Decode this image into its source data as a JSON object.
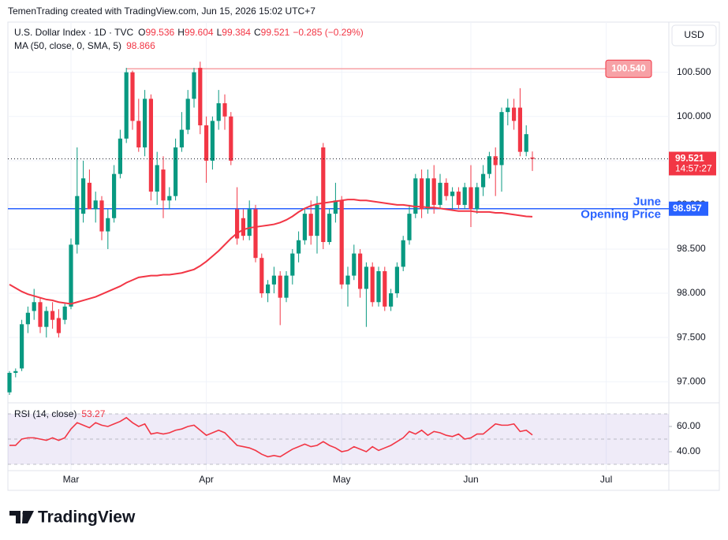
{
  "header": "TemenTrading created with TradingView.com, Jun 15, 2026 15:02 UTC+7",
  "logo": "TradingView",
  "chart_data": [
    {
      "type": "candlestick",
      "title": "U.S. Dollar Index · 1D · TVC",
      "ohlc_labels": [
        "O",
        "H",
        "L",
        "C"
      ],
      "change": "−0.285 (−0.29%)",
      "currency": "USD",
      "countdown": "14:57:27",
      "up_color": "#089981",
      "down_color": "#f23645",
      "categories": [
        null,
        null,
        null,
        null,
        null,
        null,
        null,
        null,
        null,
        null,
        "Mar",
        null,
        null,
        null,
        null,
        null,
        null,
        null,
        null,
        null,
        null,
        null,
        null,
        null,
        null,
        null,
        null,
        null,
        null,
        null,
        null,
        null,
        "Apr",
        null,
        null,
        null,
        null,
        null,
        null,
        null,
        null,
        null,
        null,
        null,
        null,
        null,
        null,
        null,
        null,
        null,
        null,
        null,
        null,
        null,
        "May",
        null,
        null,
        null,
        null,
        null,
        null,
        null,
        null,
        null,
        null,
        null,
        null,
        null,
        null,
        null,
        null,
        null,
        null,
        null,
        null,
        "Jun",
        null,
        null,
        null,
        null,
        null,
        null,
        null,
        null,
        null,
        null,
        null,
        null,
        null,
        null,
        null,
        null,
        null,
        null,
        null,
        null,
        null,
        "Jul"
      ],
      "open": [
        96.88,
        97.1,
        97.15,
        97.65,
        97.8,
        97.9,
        97.62,
        97.8,
        97.72,
        97.7,
        97.85,
        98.55,
        98.9,
        99.25,
        98.95,
        99.05,
        98.7,
        98.85,
        99.35,
        99.75,
        100.5,
        99.95,
        99.65,
        100.2,
        99.15,
        99.4,
        99.05,
        99.1,
        99.65,
        99.85,
        100.2,
        100.55,
        99.9,
        99.5,
        99.95,
        100.15,
        100.0,
        98.95,
        98.85,
        98.65,
        98.95,
        98.4,
        98.0,
        98.1,
        98.2,
        97.95,
        98.2,
        98.45,
        98.6,
        98.9,
        98.65,
        99.65,
        98.58,
        98.9,
        99.05,
        98.1,
        98.2,
        98.45,
        98.05,
        98.3,
        97.9,
        98.25,
        97.85,
        98.0,
        98.3,
        98.6,
        98.9,
        99.3,
        98.95,
        99.3,
        99.0,
        99.25,
        99.1,
        99.15,
        99.0,
        99.2,
        98.95,
        99.2,
        99.35,
        99.55,
        99.45,
        100.05,
        100.1,
        100.1,
        99.6,
        99.536,
        null,
        null,
        null,
        null,
        null,
        null,
        null,
        null,
        null,
        null,
        null,
        null
      ],
      "high": [
        97.12,
        97.15,
        97.7,
        97.85,
        98.05,
        97.95,
        97.85,
        97.9,
        97.82,
        97.88,
        98.62,
        99.65,
        99.5,
        99.4,
        99.15,
        99.1,
        98.95,
        99.45,
        99.85,
        100.55,
        100.52,
        100.2,
        100.3,
        100.25,
        99.6,
        99.55,
        99.2,
        99.75,
        100.05,
        100.3,
        100.55,
        100.62,
        100.0,
        100.0,
        100.3,
        100.25,
        100.05,
        99.2,
        98.95,
        99.05,
        99.0,
        98.45,
        98.15,
        98.3,
        98.25,
        98.25,
        98.5,
        98.7,
        98.95,
        99.05,
        99.1,
        99.7,
        98.95,
        99.25,
        99.1,
        98.3,
        98.55,
        98.5,
        98.35,
        98.35,
        98.3,
        98.3,
        98.05,
        98.35,
        98.65,
        99.0,
        99.35,
        99.4,
        99.4,
        99.45,
        99.35,
        99.3,
        99.2,
        99.2,
        99.25,
        99.45,
        99.25,
        99.45,
        99.6,
        99.65,
        100.1,
        100.2,
        100.2,
        100.32,
        99.9,
        99.604,
        null,
        null,
        null,
        null,
        null,
        null,
        null,
        null,
        null,
        null,
        null,
        null
      ],
      "low": [
        96.85,
        97.05,
        97.12,
        97.55,
        97.7,
        97.55,
        97.5,
        97.6,
        97.5,
        97.65,
        97.82,
        98.45,
        98.8,
        98.95,
        98.8,
        98.6,
        98.5,
        98.8,
        99.3,
        99.7,
        99.85,
        99.6,
        99.55,
        99.05,
        99.0,
        98.85,
        98.95,
        99.05,
        99.6,
        99.8,
        100.1,
        99.8,
        99.25,
        99.4,
        99.85,
        99.85,
        99.45,
        98.55,
        98.6,
        98.6,
        98.35,
        97.95,
        97.9,
        98.0,
        97.64,
        97.9,
        98.1,
        98.35,
        98.55,
        98.55,
        98.45,
        98.5,
        98.55,
        98.8,
        98.05,
        97.85,
        98.15,
        97.95,
        97.62,
        97.85,
        97.85,
        97.8,
        97.8,
        97.95,
        98.25,
        98.55,
        98.85,
        98.85,
        98.9,
        98.9,
        98.95,
        99.05,
        98.95,
        98.95,
        98.95,
        98.75,
        98.9,
        99.1,
        99.3,
        99.1,
        99.15,
        99.9,
        99.85,
        99.55,
        99.55,
        99.384,
        null,
        null,
        null,
        null,
        null,
        null,
        null,
        null,
        null,
        null,
        null,
        null
      ],
      "close": [
        97.1,
        97.12,
        97.65,
        97.78,
        97.9,
        97.62,
        97.8,
        97.7,
        97.55,
        97.85,
        98.55,
        99.1,
        99.3,
        98.95,
        99.05,
        98.7,
        98.85,
        99.35,
        99.75,
        100.5,
        99.95,
        99.65,
        100.2,
        99.15,
        99.45,
        99.05,
        99.1,
        99.65,
        99.85,
        100.2,
        100.5,
        99.9,
        99.5,
        99.95,
        100.15,
        100.0,
        99.5,
        98.62,
        98.65,
        98.95,
        98.4,
        98.0,
        98.1,
        98.2,
        97.95,
        98.2,
        98.45,
        98.6,
        98.9,
        98.65,
        99.0,
        98.58,
        98.9,
        99.05,
        98.1,
        98.2,
        98.45,
        98.05,
        98.3,
        97.9,
        98.25,
        97.85,
        98.0,
        98.3,
        98.6,
        98.9,
        99.3,
        98.95,
        99.3,
        99.0,
        99.25,
        99.1,
        99.15,
        99.0,
        99.2,
        98.95,
        99.2,
        99.35,
        99.55,
        99.45,
        100.05,
        100.1,
        99.95,
        99.6,
        99.8,
        99.521,
        null,
        null,
        null,
        null,
        null,
        null,
        null,
        null,
        null,
        null,
        null,
        null
      ],
      "series": [
        {
          "name": "MA (50, close, 0, SMA, 5)",
          "color": "#f23645",
          "values": [
            98.1,
            98.06,
            98.02,
            97.99,
            97.97,
            97.95,
            97.93,
            97.92,
            97.9,
            97.89,
            97.88,
            97.9,
            97.92,
            97.94,
            97.96,
            97.99,
            98.02,
            98.05,
            98.08,
            98.12,
            98.15,
            98.18,
            98.19,
            98.2,
            98.2,
            98.21,
            98.21,
            98.22,
            98.23,
            98.25,
            98.27,
            98.31,
            98.36,
            98.42,
            98.48,
            98.55,
            98.62,
            98.68,
            98.72,
            98.74,
            98.75,
            98.76,
            98.77,
            98.78,
            98.8,
            98.83,
            98.87,
            98.92,
            98.96,
            98.99,
            99.01,
            99.02,
            99.03,
            99.04,
            99.05,
            99.06,
            99.06,
            99.05,
            99.05,
            99.04,
            99.03,
            99.02,
            99.01,
            99.0,
            99.0,
            98.99,
            98.98,
            98.98,
            98.97,
            98.97,
            98.96,
            98.95,
            98.94,
            98.93,
            98.93,
            98.93,
            98.92,
            98.92,
            98.92,
            98.91,
            98.91,
            98.9,
            98.89,
            98.88,
            98.87,
            98.866,
            null,
            null,
            null,
            null,
            null,
            null,
            null,
            null,
            null,
            null,
            null,
            null
          ]
        }
      ],
      "levels": [
        {
          "price": {
            "value": 100.54,
            "label": "100.540"
          },
          "color": "#f7a1a6"
        },
        {
          "price": 98.957,
          "color": "#2962ff",
          "note": [
            "June",
            "Opening Price"
          ]
        }
      ],
      "ylim": [
        96.77,
        101.05
      ],
      "yticks": [
        {
          "value": 97,
          "label": "97.000"
        },
        {
          "value": 97.5,
          "label": "97.500"
        },
        {
          "value": 98,
          "label": "98.000"
        },
        {
          "value": 98.5,
          "label": "98.500"
        },
        {
          "value": 99,
          "label": "99.000"
        },
        {
          "value": 99.5,
          "label": "99.500"
        },
        {
          "value": 100,
          "label": "100.000"
        },
        {
          "value": 100.5,
          "label": "100.500"
        }
      ],
      "grid": true
    },
    {
      "type": "line",
      "series": [
        {
          "name": "RSI (14, close)",
          "color": "#f23645",
          "values": [
            45,
            45,
            50,
            51,
            51,
            50,
            49,
            51,
            49,
            51,
            58,
            63,
            61,
            59,
            63,
            61,
            60,
            62,
            64,
            67,
            63,
            60,
            62,
            54,
            55,
            54,
            55,
            57,
            58,
            60,
            61,
            57,
            53,
            55,
            57,
            55,
            50,
            45,
            44,
            43,
            41,
            38,
            36,
            37,
            36,
            39,
            42,
            44,
            46,
            44,
            45,
            48,
            45,
            43,
            40,
            41,
            44,
            42,
            40,
            44,
            41,
            43,
            45,
            48,
            51,
            56,
            54,
            57,
            53,
            56,
            55,
            53,
            52,
            54,
            50,
            51,
            54,
            54,
            58,
            62,
            61,
            61,
            62,
            56,
            57,
            53.27
          ]
        }
      ],
      "levels": [
        30,
        50,
        70
      ],
      "band_color": "#7e57c2",
      "ylim": [
        26.25,
        78.1
      ],
      "yticks": [
        {
          "value": 40,
          "label": "40.00"
        },
        {
          "value": 60,
          "label": "60.00"
        }
      ],
      "grid": true
    }
  ]
}
